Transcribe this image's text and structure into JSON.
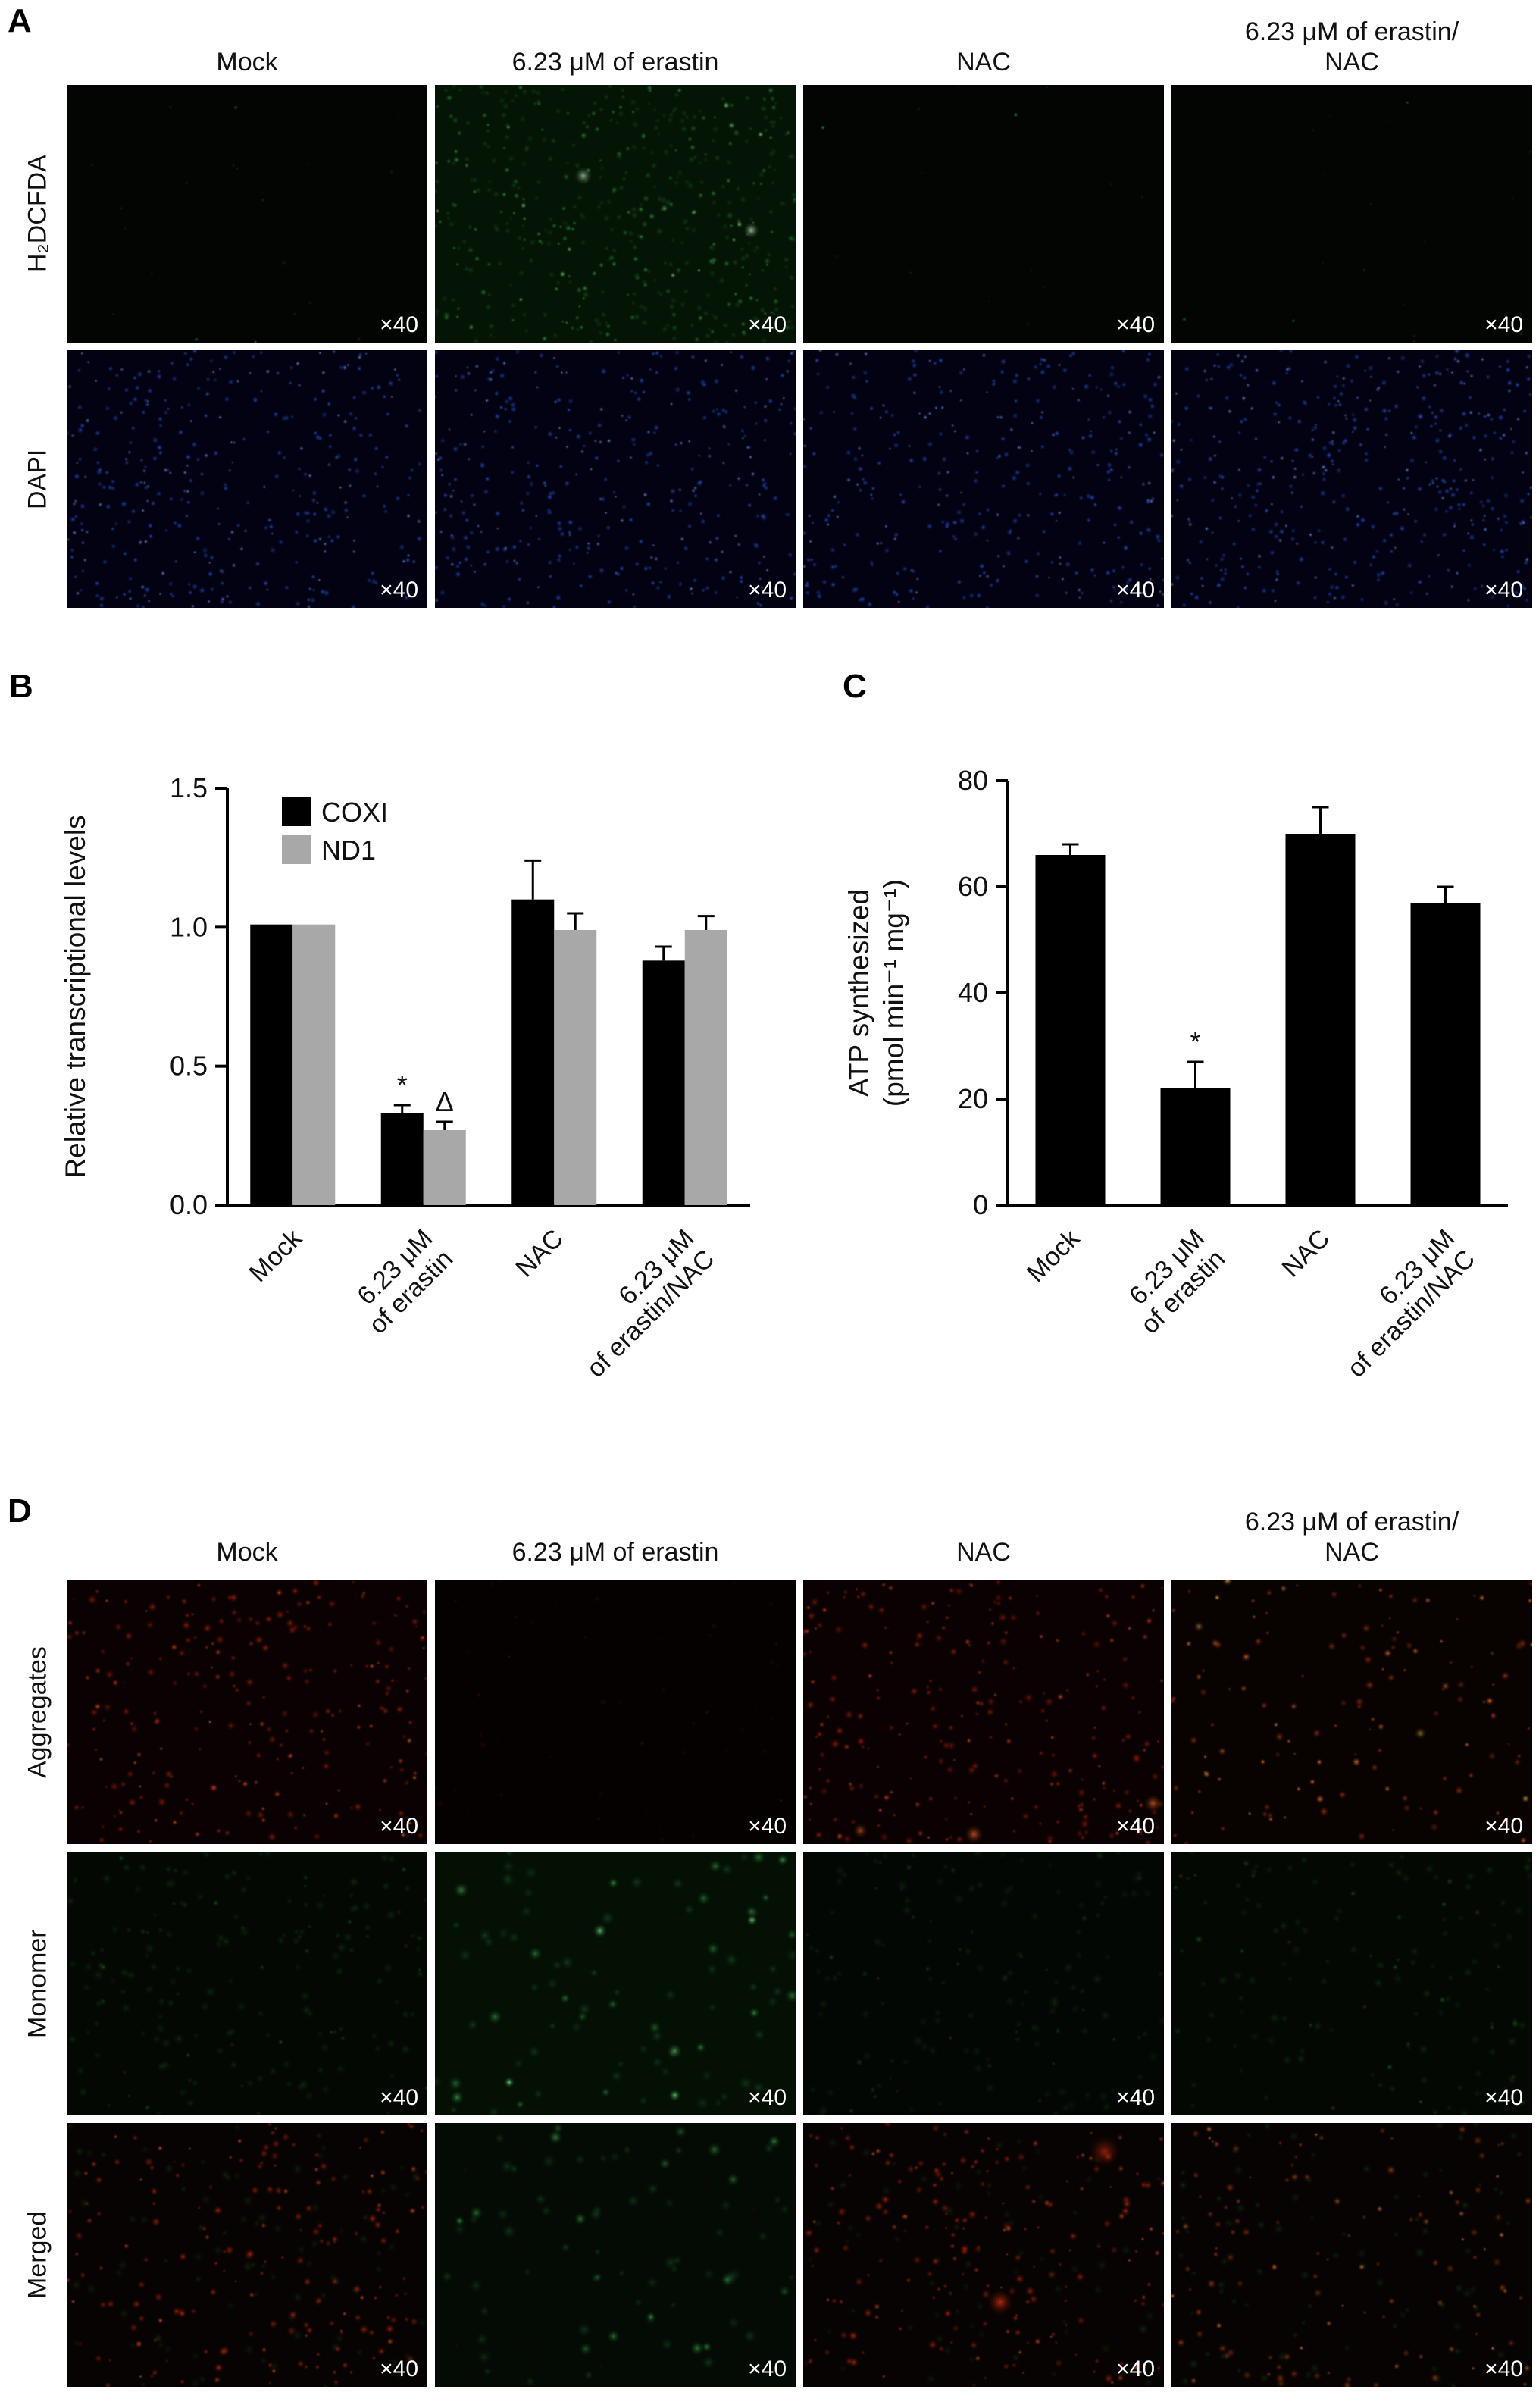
{
  "magnification": "×40",
  "panels": {
    "A": {
      "label": "A",
      "column_headers": [
        "Mock",
        "6.23 μM of erastin",
        "NAC",
        "6.23 μM of erastin/\nNAC"
      ],
      "rows": [
        {
          "label": "H₂DCFDA",
          "images": [
            {
              "condition": "Mock",
              "background": "#020502",
              "dots": [
                {
                  "color": "#2d8f2d",
                  "count": 18,
                  "radius": [
                    2,
                    4
                  ],
                  "alpha": 0.35
                },
                {
                  "color": "#55e055",
                  "count": 3,
                  "radius": [
                    2.5,
                    4.5
                  ],
                  "alpha": 0.8
                }
              ]
            },
            {
              "condition": "6.23 μM of erastin",
              "background": "#051505",
              "dots": [
                {
                  "color": "#1f6f2f",
                  "count": 320,
                  "radius": [
                    4,
                    7
                  ],
                  "alpha": 0.5
                },
                {
                  "color": "#35b34a",
                  "count": 160,
                  "radius": [
                    3,
                    6
                  ],
                  "alpha": 0.8
                },
                {
                  "color": "#8fff8f",
                  "count": 18,
                  "radius": [
                    3,
                    6
                  ],
                  "alpha": 0.9
                },
                {
                  "color": "#c8ffc8",
                  "count": 2,
                  "radius": [
                    9,
                    14
                  ],
                  "alpha": 1
                }
              ]
            },
            {
              "condition": "NAC",
              "background": "#020502",
              "dots": [
                {
                  "color": "#2d8f2d",
                  "count": 14,
                  "radius": [
                    2,
                    4
                  ],
                  "alpha": 0.3
                },
                {
                  "color": "#55e055",
                  "count": 2,
                  "radius": [
                    2.5,
                    4
                  ],
                  "alpha": 0.7
                }
              ]
            },
            {
              "condition": "6.23 μM of erastin/NAC",
              "background": "#020502",
              "dots": [
                {
                  "color": "#2d8f2d",
                  "count": 16,
                  "radius": [
                    2,
                    4
                  ],
                  "alpha": 0.3
                },
                {
                  "color": "#55e055",
                  "count": 3,
                  "radius": [
                    2.5,
                    4.5
                  ],
                  "alpha": 0.75
                }
              ]
            }
          ]
        },
        {
          "label": "DAPI",
          "images": [
            {
              "condition": "Mock",
              "background": "#020212",
              "dots": [
                {
                  "color": "#2b55e0",
                  "count": 240,
                  "radius": [
                    3.5,
                    5.5
                  ],
                  "alpha": 0.95
                },
                {
                  "color": "#7d9bff",
                  "count": 120,
                  "radius": [
                    2.5,
                    4
                  ],
                  "alpha": 0.9
                }
              ]
            },
            {
              "condition": "6.23 μM of erastin",
              "background": "#020212",
              "dots": [
                {
                  "color": "#2b55e0",
                  "count": 240,
                  "radius": [
                    3.5,
                    5.5
                  ],
                  "alpha": 0.95
                },
                {
                  "color": "#7d9bff",
                  "count": 120,
                  "radius": [
                    2.5,
                    4
                  ],
                  "alpha": 0.9
                }
              ]
            },
            {
              "condition": "NAC",
              "background": "#020212",
              "dots": [
                {
                  "color": "#2b55e0",
                  "count": 230,
                  "radius": [
                    3.5,
                    5.5
                  ],
                  "alpha": 0.95
                },
                {
                  "color": "#7d9bff",
                  "count": 110,
                  "radius": [
                    2.5,
                    4
                  ],
                  "alpha": 0.9
                }
              ]
            },
            {
              "condition": "6.23 μM of erastin/NAC",
              "background": "#020212",
              "dots": [
                {
                  "color": "#2b55e0",
                  "count": 290,
                  "radius": [
                    3.5,
                    5.5
                  ],
                  "alpha": 0.95
                },
                {
                  "color": "#7d9bff",
                  "count": 140,
                  "radius": [
                    2.5,
                    4
                  ],
                  "alpha": 0.9
                }
              ]
            }
          ]
        }
      ]
    },
    "B": {
      "label": "B"
    },
    "C": {
      "label": "C"
    },
    "D": {
      "label": "D",
      "column_headers": [
        "Mock",
        "6.23 μM of erastin",
        "NAC",
        "6.23 μM of erastin/\nNAC"
      ],
      "rows": [
        {
          "label": "Aggregates",
          "images": [
            {
              "condition": "Mock",
              "background": "#0a0202",
              "dots": [
                {
                  "color": "#b3200a",
                  "count": 160,
                  "radius": [
                    3,
                    8
                  ],
                  "alpha": 0.85
                },
                {
                  "color": "#ff4a1e",
                  "count": 60,
                  "radius": [
                    2.5,
                    6
                  ],
                  "alpha": 0.9
                },
                {
                  "color": "#ff8c3c",
                  "count": 12,
                  "radius": [
                    2,
                    5
                  ],
                  "alpha": 0.9
                }
              ]
            },
            {
              "condition": "6.23 μM of erastin",
              "background": "#060101",
              "dots": [
                {
                  "color": "#5a1206",
                  "count": 50,
                  "radius": [
                    2,
                    6
                  ],
                  "alpha": 0.45
                },
                {
                  "color": "#8c2410",
                  "count": 10,
                  "radius": [
                    2,
                    4
                  ],
                  "alpha": 0.5
                }
              ]
            },
            {
              "condition": "NAC",
              "background": "#0a0202",
              "dots": [
                {
                  "color": "#b3200a",
                  "count": 170,
                  "radius": [
                    3,
                    8
                  ],
                  "alpha": 0.85
                },
                {
                  "color": "#ff4a1e",
                  "count": 70,
                  "radius": [
                    2.5,
                    6
                  ],
                  "alpha": 0.9
                },
                {
                  "color": "#ff6a2a",
                  "count": 3,
                  "radius": [
                    8,
                    14
                  ],
                  "alpha": 0.95
                }
              ]
            },
            {
              "condition": "6.23 μM of erastin/NAC",
              "background": "#080201",
              "dots": [
                {
                  "color": "#c03a10",
                  "count": 90,
                  "radius": [
                    3,
                    8
                  ],
                  "alpha": 0.8
                },
                {
                  "color": "#ff7a28",
                  "count": 40,
                  "radius": [
                    3,
                    7
                  ],
                  "alpha": 0.9
                },
                {
                  "color": "#ffb040",
                  "count": 8,
                  "radius": [
                    4,
                    9
                  ],
                  "alpha": 0.95
                }
              ]
            }
          ]
        },
        {
          "label": "Monomer",
          "images": [
            {
              "condition": "Mock",
              "background": "#030803",
              "dots": [
                {
                  "color": "#1c4a1c",
                  "count": 140,
                  "radius": [
                    5,
                    10
                  ],
                  "alpha": 0.5
                },
                {
                  "color": "#2f7a2f",
                  "count": 30,
                  "radius": [
                    3,
                    6
                  ],
                  "alpha": 0.6
                },
                {
                  "color": "#7a4a16",
                  "count": 10,
                  "radius": [
                    3,
                    6
                  ],
                  "alpha": 0.4
                }
              ]
            },
            {
              "condition": "6.23 μM of erastin",
              "background": "#041004",
              "dots": [
                {
                  "color": "#1e5a2a",
                  "count": 60,
                  "radius": [
                    7,
                    13
                  ],
                  "alpha": 0.6
                },
                {
                  "color": "#37a448",
                  "count": 22,
                  "radius": [
                    7,
                    12
                  ],
                  "alpha": 0.8
                },
                {
                  "color": "#6fe07a",
                  "count": 6,
                  "radius": [
                    8,
                    13
                  ],
                  "alpha": 0.9
                }
              ]
            },
            {
              "condition": "NAC",
              "background": "#030703",
              "dots": [
                {
                  "color": "#1c431c",
                  "count": 120,
                  "radius": [
                    5,
                    10
                  ],
                  "alpha": 0.45
                },
                {
                  "color": "#2f6f2f",
                  "count": 25,
                  "radius": [
                    3,
                    6
                  ],
                  "alpha": 0.55
                },
                {
                  "color": "#8a4a16",
                  "count": 8,
                  "radius": [
                    3,
                    6
                  ],
                  "alpha": 0.45
                }
              ]
            },
            {
              "condition": "6.23 μM of erastin/NAC",
              "background": "#030803",
              "dots": [
                {
                  "color": "#1c4a1c",
                  "count": 110,
                  "radius": [
                    5,
                    10
                  ],
                  "alpha": 0.5
                },
                {
                  "color": "#2f8f2f",
                  "count": 20,
                  "radius": [
                    4,
                    7
                  ],
                  "alpha": 0.6
                },
                {
                  "color": "#a05a1a",
                  "count": 10,
                  "radius": [
                    3,
                    6
                  ],
                  "alpha": 0.5
                }
              ]
            }
          ]
        },
        {
          "label": "Merged",
          "images": [
            {
              "condition": "Mock",
              "background": "#070302",
              "dots": [
                {
                  "color": "#1c4a1c",
                  "count": 90,
                  "radius": [
                    5,
                    10
                  ],
                  "alpha": 0.45
                },
                {
                  "color": "#c32a0c",
                  "count": 140,
                  "radius": [
                    3,
                    8
                  ],
                  "alpha": 0.85
                },
                {
                  "color": "#ff5a1e",
                  "count": 40,
                  "radius": [
                    2.5,
                    6
                  ],
                  "alpha": 0.9
                }
              ]
            },
            {
              "condition": "6.23 μM of erastin",
              "background": "#040a04",
              "dots": [
                {
                  "color": "#1e5a2a",
                  "count": 55,
                  "radius": [
                    7,
                    13
                  ],
                  "alpha": 0.6
                },
                {
                  "color": "#37a448",
                  "count": 18,
                  "radius": [
                    7,
                    12
                  ],
                  "alpha": 0.8
                },
                {
                  "color": "#5a1206",
                  "count": 25,
                  "radius": [
                    2,
                    5
                  ],
                  "alpha": 0.4
                }
              ]
            },
            {
              "condition": "NAC",
              "background": "#070302",
              "dots": [
                {
                  "color": "#1c431c",
                  "count": 70,
                  "radius": [
                    5,
                    10
                  ],
                  "alpha": 0.4
                },
                {
                  "color": "#c32a0c",
                  "count": 150,
                  "radius": [
                    3,
                    8
                  ],
                  "alpha": 0.85
                },
                {
                  "color": "#ff5a1e",
                  "count": 50,
                  "radius": [
                    2.5,
                    6
                  ],
                  "alpha": 0.9
                },
                {
                  "color": "#ff3a0e",
                  "count": 2,
                  "radius": [
                    16,
                    24
                  ],
                  "alpha": 0.95
                }
              ]
            },
            {
              "condition": "6.23 μM of erastin/NAC",
              "background": "#060302",
              "dots": [
                {
                  "color": "#1c4a1c",
                  "count": 80,
                  "radius": [
                    5,
                    10
                  ],
                  "alpha": 0.5
                },
                {
                  "color": "#c3480f",
                  "count": 90,
                  "radius": [
                    3,
                    8
                  ],
                  "alpha": 0.8
                },
                {
                  "color": "#ff8c2a",
                  "count": 30,
                  "radius": [
                    3,
                    7
                  ],
                  "alpha": 0.9
                }
              ]
            }
          ]
        }
      ]
    }
  },
  "chart_data": [
    {
      "panel": "B",
      "type": "bar",
      "categories": [
        "Mock",
        "6.23 μM\nof erastin",
        "NAC",
        "6.23 μM\nof erastin/NAC"
      ],
      "series": [
        {
          "name": "COXI",
          "color": "#000000",
          "values": [
            1.01,
            0.33,
            1.1,
            0.88
          ],
          "errors": [
            0,
            0.03,
            0.14,
            0.05
          ]
        },
        {
          "name": "ND1",
          "color": "#a8a8a8",
          "values": [
            1.01,
            0.27,
            0.99,
            0.99
          ],
          "errors": [
            0,
            0.03,
            0.06,
            0.05
          ]
        }
      ],
      "ylabel": "Relative transcriptional levels",
      "xlabel": "",
      "ylim": [
        0,
        1.5
      ],
      "yticks": [
        {
          "v": 0,
          "label": "0.0"
        },
        {
          "v": 0.5,
          "label": "0.5"
        },
        {
          "v": 1.0,
          "label": "1.0"
        },
        {
          "v": 1.5,
          "label": "1.5"
        }
      ],
      "legend_position": "top-left-inside",
      "grid": false,
      "annotations": [
        {
          "text": "*",
          "series": 0,
          "category": 1
        },
        {
          "text": "Δ",
          "series": 1,
          "category": 1
        }
      ]
    },
    {
      "panel": "C",
      "type": "bar",
      "categories": [
        "Mock",
        "6.23 μM\nof erastin",
        "NAC",
        "6.23 μM\nof erastin/NAC"
      ],
      "series": [
        {
          "name": "ATP synthesized",
          "color": "#000000",
          "values": [
            66,
            22,
            70,
            57
          ],
          "errors": [
            2,
            5,
            5,
            3
          ]
        }
      ],
      "ylabel": "ATP synthesized\n(pmol min⁻¹ mg⁻¹)",
      "xlabel": "",
      "ylim": [
        0,
        80
      ],
      "yticks": [
        {
          "v": 0,
          "label": "0"
        },
        {
          "v": 20,
          "label": "20"
        },
        {
          "v": 40,
          "label": "40"
        },
        {
          "v": 60,
          "label": "60"
        },
        {
          "v": 80,
          "label": "80"
        }
      ],
      "legend_position": "none",
      "grid": false,
      "annotations": [
        {
          "text": "*",
          "series": 0,
          "category": 1
        }
      ]
    }
  ]
}
